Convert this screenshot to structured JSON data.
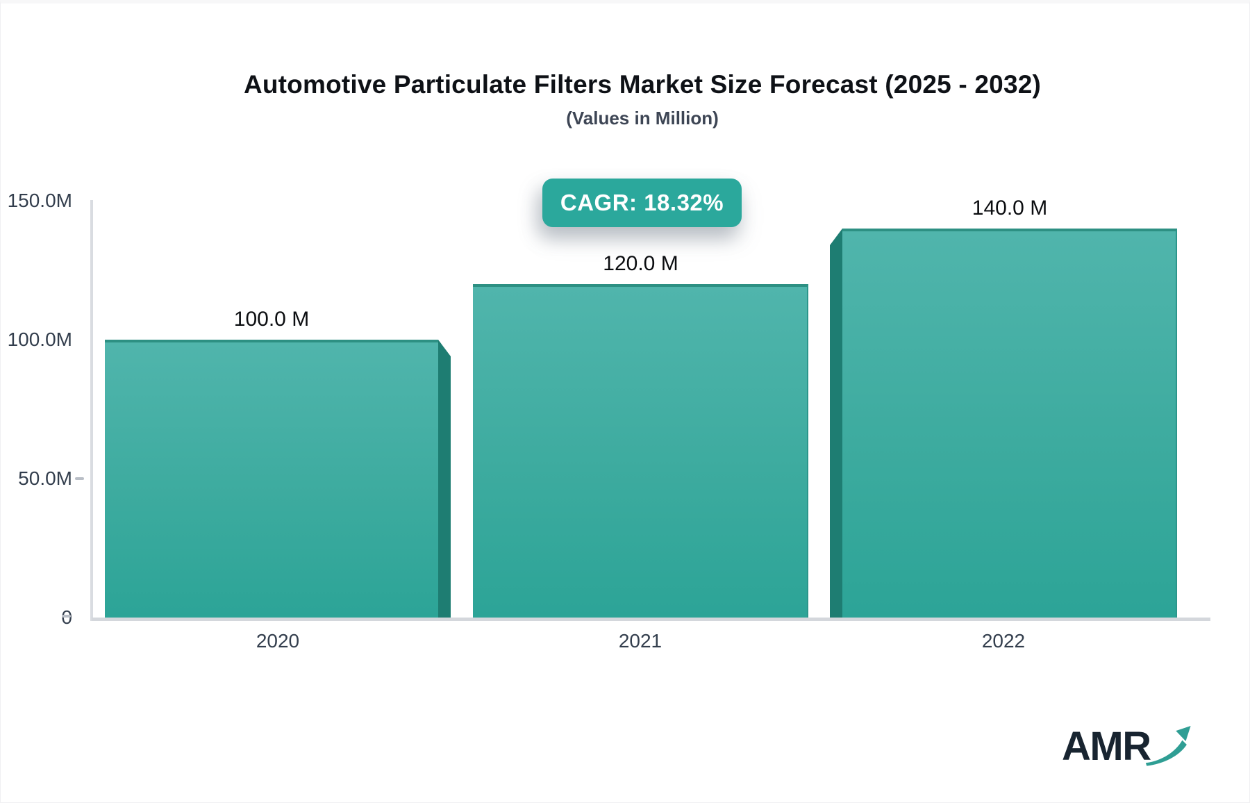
{
  "chart_data": {
    "type": "bar",
    "title": "Automotive Particulate Filters Market Size Forecast (2025 - 2032)",
    "subtitle": "(Values in Million)",
    "cagr_badge": "CAGR: 18.32%",
    "categories": [
      "2020",
      "2021",
      "2022"
    ],
    "values": [
      100.0,
      120.0,
      140.0
    ],
    "value_labels": [
      "100.0 M",
      "120.0 M",
      "140.0 M"
    ],
    "yticks": [
      "150.0M",
      "100.0M",
      "50.0M",
      "0"
    ],
    "ylim": [
      0,
      150
    ],
    "xlabel": "",
    "ylabel": "",
    "grid": false,
    "legend": "none",
    "bar_style": "3d-extruded"
  },
  "branding": {
    "logo_text": "AMR",
    "logo_icon": "growth-arrow-icon"
  },
  "colors": {
    "bar_gradient_top": "#50b5ac",
    "bar_gradient_bottom": "#2ca497",
    "bar_top_border": "#2d9083",
    "bar_side_face": "#1e7d72",
    "badge_background": "#2ba89c",
    "badge_text": "#ffffff",
    "axis_line": "#d6d9de",
    "title_text": "#0e1116",
    "axis_label_text": "#333e4d",
    "logo_navy": "#182430",
    "logo_teal": "#2f9e94"
  }
}
